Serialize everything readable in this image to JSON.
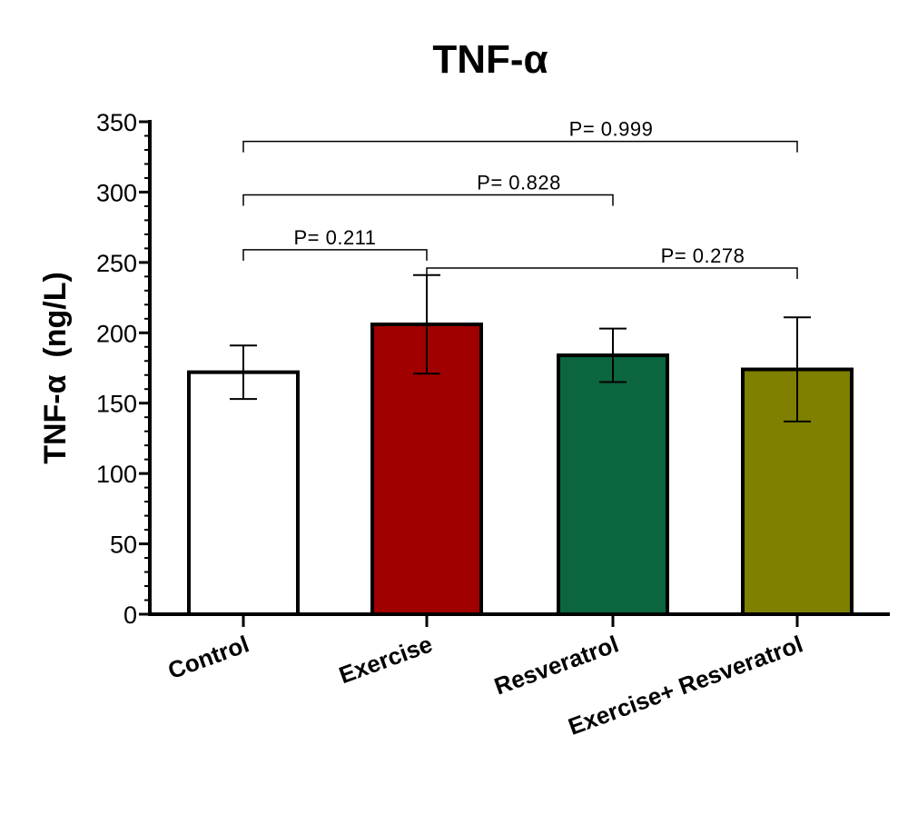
{
  "chart_data": {
    "type": "bar",
    "title": "TNF-α",
    "ylabel": "TNF-α  (ng/L)",
    "xlabel": "",
    "ylim": [
      0,
      350
    ],
    "yticks": [
      0,
      50,
      100,
      150,
      200,
      250,
      300,
      350
    ],
    "ytick_labels": [
      "0",
      "50",
      "100",
      "150",
      "200",
      "250",
      "300",
      "350"
    ],
    "categories": [
      "Control",
      "Exercise",
      "Resveratrol",
      "Exercise+ Resveratrol"
    ],
    "values": [
      172,
      206,
      184,
      174
    ],
    "errors": [
      19,
      35,
      19,
      37
    ],
    "colors": [
      "#ffffff",
      "#a00000",
      "#0b6640",
      "#7f7f00"
    ],
    "comparisons": [
      {
        "from": 0,
        "to": 3,
        "label": "P= 0.999",
        "y": 336
      },
      {
        "from": 0,
        "to": 2,
        "label": "P= 0.828",
        "y": 298
      },
      {
        "from": 0,
        "to": 1,
        "label": "P= 0.211",
        "y": 259
      },
      {
        "from": 1,
        "to": 3,
        "label": "P= 0.278",
        "y": 246
      }
    ],
    "grid": false
  }
}
